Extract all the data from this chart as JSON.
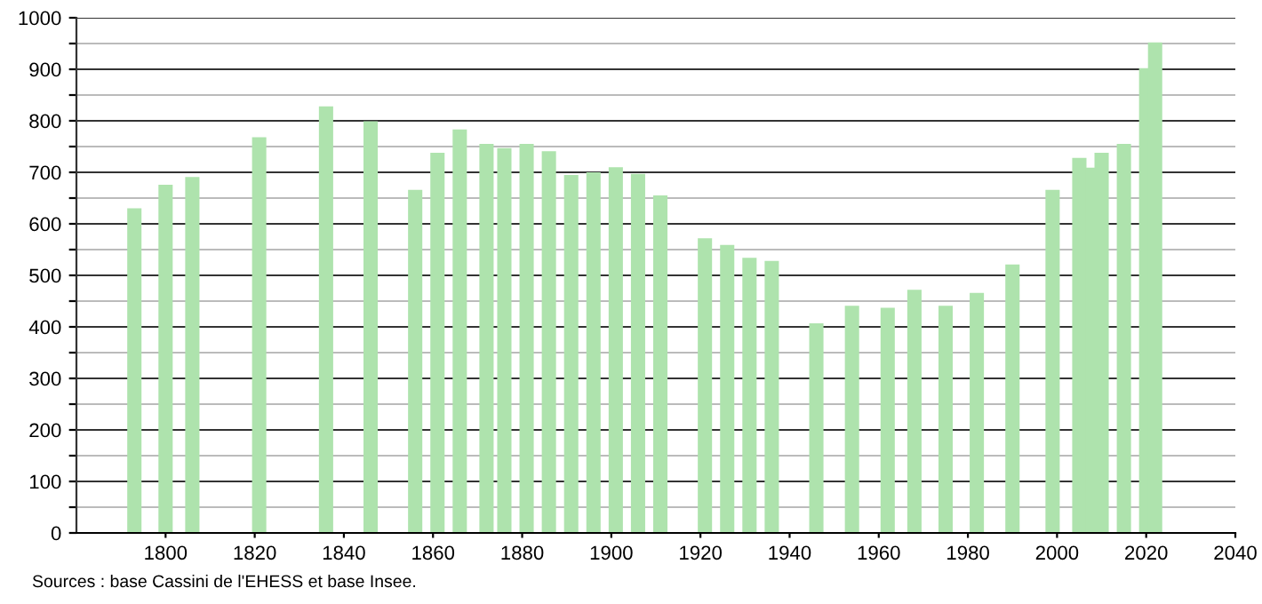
{
  "chart_data": {
    "type": "bar",
    "color": "#aee3ad",
    "x": [
      1793,
      1800,
      1806,
      1821,
      1836,
      1846,
      1856,
      1861,
      1866,
      1872,
      1876,
      1881,
      1886,
      1891,
      1896,
      1901,
      1906,
      1911,
      1921,
      1926,
      1931,
      1936,
      1946,
      1954,
      1962,
      1968,
      1975,
      1982,
      1990,
      1999,
      2005,
      2008,
      2010,
      2015,
      2020,
      2022
    ],
    "values": [
      630,
      676,
      691,
      768,
      828,
      799,
      666,
      738,
      783,
      755,
      747,
      755,
      741,
      695,
      700,
      710,
      697,
      655,
      572,
      559,
      534,
      528,
      407,
      441,
      437,
      472,
      441,
      466,
      521,
      666,
      728,
      709,
      738,
      755,
      902,
      952
    ],
    "xlim": [
      1780,
      2040
    ],
    "xticks": [
      1800,
      1820,
      1840,
      1860,
      1880,
      1900,
      1920,
      1940,
      1960,
      1980,
      2000,
      2020,
      2040
    ],
    "ylim": [
      0,
      1000
    ],
    "yticks": [
      0,
      {
        "value": 50,
        "label": null
      },
      100,
      {
        "value": 150,
        "label": null
      },
      200,
      {
        "value": 250,
        "label": null
      },
      300,
      {
        "value": 350,
        "label": null
      },
      400,
      {
        "value": 450,
        "label": null
      },
      500,
      {
        "value": 550,
        "label": null
      },
      600,
      {
        "value": 650,
        "label": null
      },
      700,
      {
        "value": 750,
        "label": null
      },
      800,
      {
        "value": 850,
        "label": null
      },
      900,
      {
        "value": 950,
        "label": null
      },
      1000
    ],
    "grid": "y",
    "annotations": [
      "Sources : base Cassini de l'EHESS et base Insee."
    ]
  }
}
